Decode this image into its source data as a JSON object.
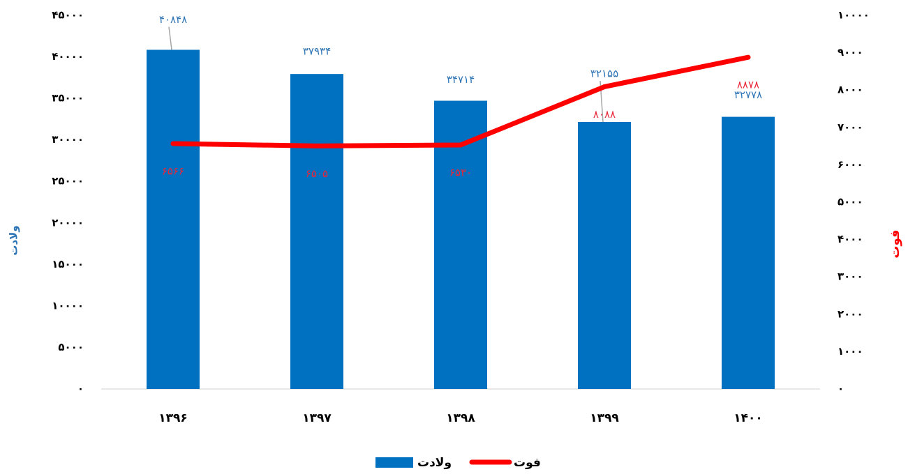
{
  "chart_data": {
    "type": "bar",
    "categories": [
      "۱۳۹۶",
      "۱۳۹۷",
      "۱۳۹۸",
      "۱۳۹۹",
      "۱۴۰۰"
    ],
    "ylabel": "ولادت",
    "y2label": "فوت",
    "series": [
      {
        "name": "ولادت",
        "type": "bar",
        "color": "#0070c0",
        "label_color": "#2e75b6",
        "values": [
          40848,
          37934,
          34714,
          32155,
          32778
        ],
        "value_labels": [
          "۴۰۸۴۸",
          "۳۷۹۳۴",
          "۳۴۷۱۴",
          "۳۲۱۵۵",
          "۳۲۷۷۸"
        ]
      },
      {
        "name": "فوت",
        "type": "line",
        "axis": "y2",
        "color": "#ff0000",
        "label_color": "#e8283a",
        "values": [
          6566,
          6505,
          6530,
          8088,
          8878
        ],
        "value_labels": [
          "۶۵۶۶",
          "۶۵۰۵",
          "۶۵۳۰",
          "۸۰۸۸",
          "۸۸۷۸"
        ]
      }
    ],
    "ylim": [
      0,
      45000
    ],
    "yticks": [
      {
        "value": 0,
        "label": "۰"
      },
      {
        "value": 5000,
        "label": "۵۰۰۰"
      },
      {
        "value": 10000,
        "label": "۱۰۰۰۰"
      },
      {
        "value": 15000,
        "label": "۱۵۰۰۰"
      },
      {
        "value": 20000,
        "label": "۲۰۰۰۰"
      },
      {
        "value": 25000,
        "label": "۲۵۰۰۰"
      },
      {
        "value": 30000,
        "label": "۳۰۰۰۰"
      },
      {
        "value": 35000,
        "label": "۳۵۰۰۰"
      },
      {
        "value": 40000,
        "label": "۴۰۰۰۰"
      },
      {
        "value": 45000,
        "label": "۴۵۰۰۰"
      }
    ],
    "y2lim": [
      0,
      10000
    ],
    "y2ticks": [
      {
        "value": 0,
        "label": "۰"
      },
      {
        "value": 1000,
        "label": "۱۰۰۰"
      },
      {
        "value": 2000,
        "label": "۲۰۰۰"
      },
      {
        "value": 3000,
        "label": "۳۰۰۰"
      },
      {
        "value": 4000,
        "label": "۴۰۰۰"
      },
      {
        "value": 5000,
        "label": "۵۰۰۰"
      },
      {
        "value": 6000,
        "label": "۶۰۰۰"
      },
      {
        "value": 7000,
        "label": "۷۰۰۰"
      },
      {
        "value": 8000,
        "label": "۸۰۰۰"
      },
      {
        "value": 9000,
        "label": "۹۰۰۰"
      },
      {
        "value": 10000,
        "label": "۱۰۰۰۰"
      }
    ],
    "grid": false,
    "legend": "bottom"
  }
}
